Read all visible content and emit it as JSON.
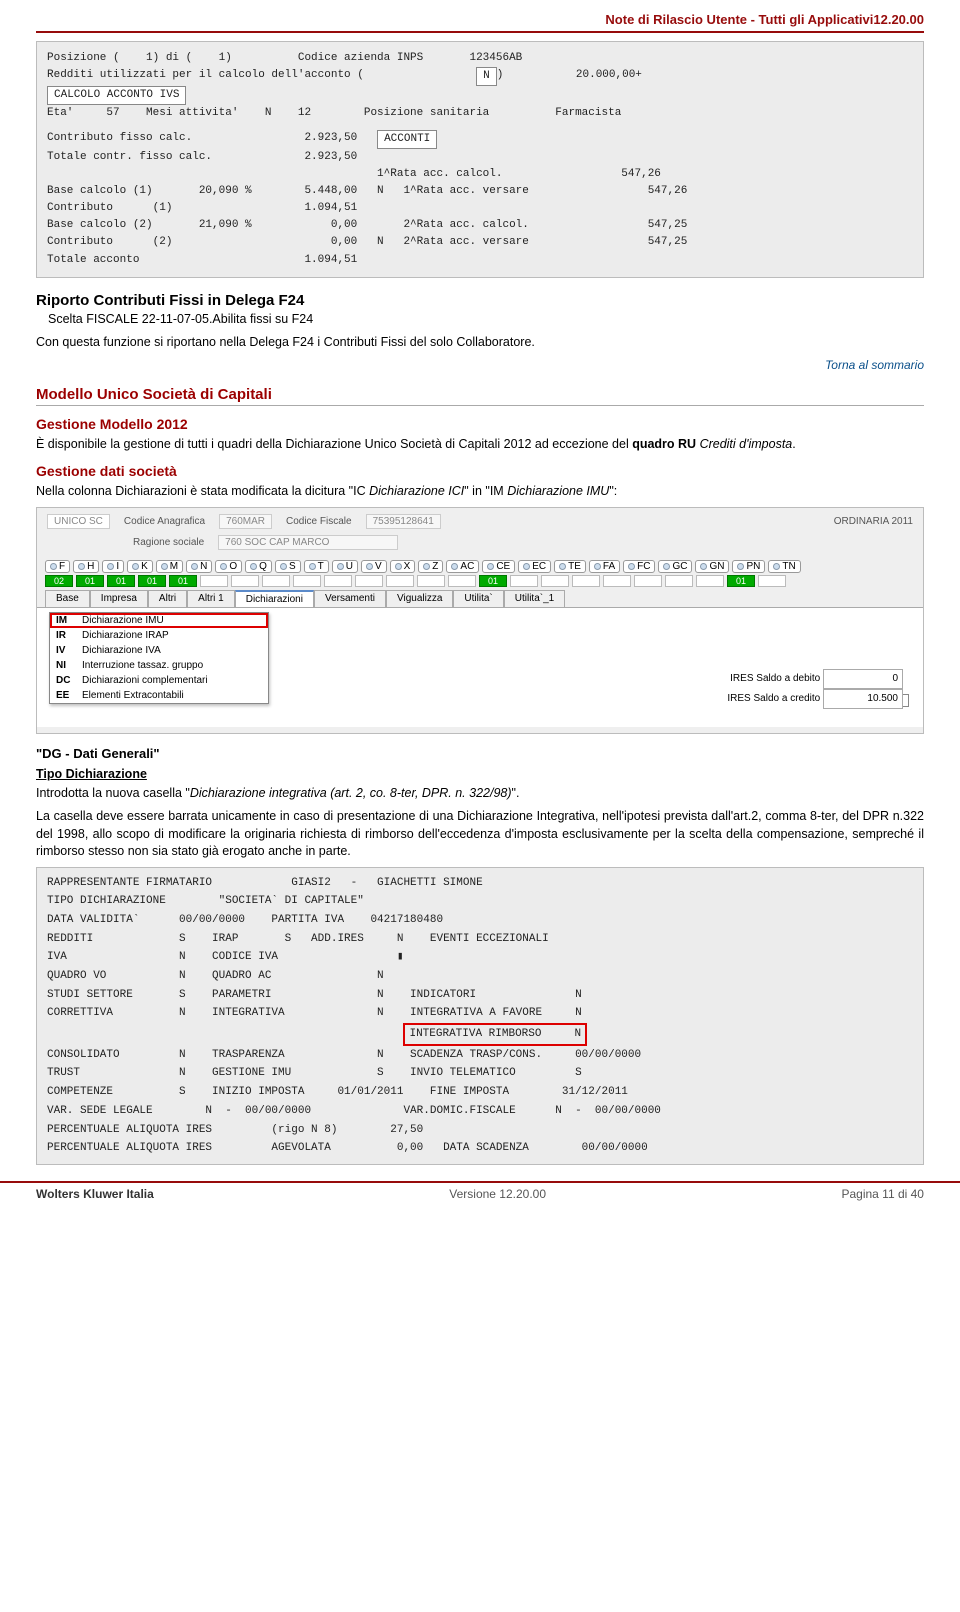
{
  "header": {
    "title": "Note di Rilascio Utente - Tutti gli Applicativi12.20.00"
  },
  "calcbox": {
    "line1": "Posizione (    1) di (    1)          Codice azienda INPS       123456AB",
    "line2_left": "Redditi utilizzati per il calcolo dell'acconto (",
    "line2_mid": "N",
    "line2_right": ")           20.000,00+",
    "badge": "CALCOLO ACCONTO IVS",
    "line3": "Eta'     57    Mesi attivita'    N    12        Posizione sanitaria          Farmacista",
    "rows": [
      "Contributo fisso calc.                 2.923,50   ",
      "Totale contr. fisso calc.              2.923,50",
      "                                                  1^Rata acc. calcol.                  547,26",
      "Base calcolo (1)       20,090 %        5.448,00   N   1^Rata acc. versare                  547,26",
      "Contributo      (1)                    1.094,51",
      "Base calcolo (2)       21,090 %            0,00       2^Rata acc. calcol.                  547,25",
      "Contributo      (2)                        0,00   N   2^Rata acc. versare                  547,25",
      "Totale acconto                         1.094,51"
    ],
    "acconti": "ACCONTI"
  },
  "section1": {
    "h": "Riporto Contributi Fissi in Delega F24",
    "sub": "Scelta FISCALE  22-11-07-05.Abilita fissi su F24",
    "p": "Con questa funzione si riportano nella Delega F24 i Contributi Fissi del solo Collaboratore."
  },
  "torna": "Torna al sommario",
  "section2": {
    "h": "Modello Unico Società di Capitali",
    "h3a": "Gestione Modello 2012",
    "p1a": "È disponibile la gestione di tutti i quadri della Dichiarazione Unico Società di Capitali 2012 ad eccezione del ",
    "p1b": "quadro RU ",
    "p1c": "Crediti d'imposta",
    "h3b": "Gestione dati società",
    "p2a": "Nella colonna Dichiarazioni è stata modificata la dicitura \"IC ",
    "p2b": "Dichiarazione ICI",
    "p2c": "\" in \"IM ",
    "p2d": "Dichiarazione IMU",
    "p2e": "\":"
  },
  "tabsshot": {
    "unico": "UNICO SC",
    "codAnag": "Codice Anagrafica",
    "codAnagV": "760MAR",
    "codFisc": "Codice Fiscale",
    "codFiscV": "75395128641",
    "ord": "ORDINARIA 2011",
    "rag": "Ragione sociale",
    "ragV": "760 SOC CAP MARCO",
    "rtabs": [
      "F",
      "H",
      "I",
      "K",
      "M",
      "N",
      "O",
      "Q",
      "S",
      "T",
      "U",
      "V",
      "X",
      "Z",
      "AC",
      "CE",
      "EC",
      "TE",
      "FA",
      "FC",
      "GC",
      "GN",
      "PN",
      "TN"
    ],
    "nums": [
      "02",
      "01",
      "01",
      "01",
      "01",
      "",
      "",
      "",
      "",
      "",
      "",
      "",
      "",
      "",
      "01",
      "",
      "",
      "",
      "",
      "",
      "",
      "",
      "01",
      ""
    ],
    "menutabs": [
      "Base",
      "Impresa",
      "Altri",
      "Altri 1",
      "Dichiarazioni",
      "Versamenti",
      "Vigualizza",
      "Utilita`",
      "Utilita`_1"
    ],
    "active_idx": 4,
    "dropdown": [
      {
        "c": "IM",
        "t": "Dichiarazione IMU",
        "hl": true
      },
      {
        "c": "IR",
        "t": "Dichiarazione IRAP"
      },
      {
        "c": "IV",
        "t": "Dichiarazione IVA"
      },
      {
        "c": "NI",
        "t": "Interruzione tassaz. gruppo"
      },
      {
        "c": "DC",
        "t": "Dichiarazioni complementari"
      },
      {
        "c": "EE",
        "t": "Elementi Extracontabili"
      }
    ],
    "im": "IM",
    "ires1l": "IRES Saldo a debito",
    "ires1v": "0",
    "ires2l": "IRES Saldo a credito",
    "ires2v": "10.500"
  },
  "dg": {
    "h": "\"DG - Dati Generali\"",
    "sub": "Tipo Dichiarazione",
    "p1a": "Introdotta la nuova casella \"",
    "p1b": "Dichiarazione integrativa (art. 2, co. 8-ter, DPR. n. 322/98)",
    "p1c": "\".",
    "p2": "La casella deve essere barrata unicamente in caso di presentazione di una Dichiarazione Integrativa, nell'ipotesi prevista dall'art.2, comma 8-ter, del DPR n.322 del 1998, allo scopo di modificare la originaria richiesta di rimborso dell'eccedenza d'imposta esclusivamente per la scelta della compensazione, sempreché il rimborso stesso non sia stato già erogato anche in parte."
  },
  "formshot": {
    "rows": [
      "RAPPRESENTANTE FIRMATARIO            GIASI2   -   GIACHETTI SIMONE",
      "TIPO DICHIARAZIONE        \"SOCIETA` DI CAPITALE\"",
      "DATA VALIDITA`      00/00/0000    PARTITA IVA    04217180480",
      "REDDITI             S    IRAP       S   ADD.IRES     N    EVENTI ECCEZIONALI",
      "IVA                 N    CODICE IVA                  ▮",
      "QUADRO VO           N    QUADRO AC                N",
      "STUDI SETTORE       S    PARAMETRI                N    INDICATORI               N",
      "CORRETTIVA          N    INTEGRATIVA              N    INTEGRATIVA A FAVORE     N"
    ],
    "hl": "INTEGRATIVA RIMBORSO     N",
    "rows2": [
      "CONSOLIDATO         N    TRASPARENZA              N    SCADENZA TRASP/CONS.     00/00/0000",
      "TRUST               N    GESTIONE IMU             S    INVIO TELEMATICO         S",
      "COMPETENZE          S    INIZIO IMPOSTA     01/01/2011    FINE IMPOSTA        31/12/2011",
      "VAR. SEDE LEGALE        N  -  00/00/0000              VAR.DOMIC.FISCALE      N  -  00/00/0000",
      "PERCENTUALE ALIQUOTA IRES         (rigo N 8)        27,50",
      "PERCENTUALE ALIQUOTA IRES         AGEVOLATA          0,00   DATA SCADENZA        00/00/0000"
    ]
  },
  "footer": {
    "l": "Wolters Kluwer Italia",
    "c": "Versione  12.20.00",
    "r": "Pagina  11 di 40"
  }
}
